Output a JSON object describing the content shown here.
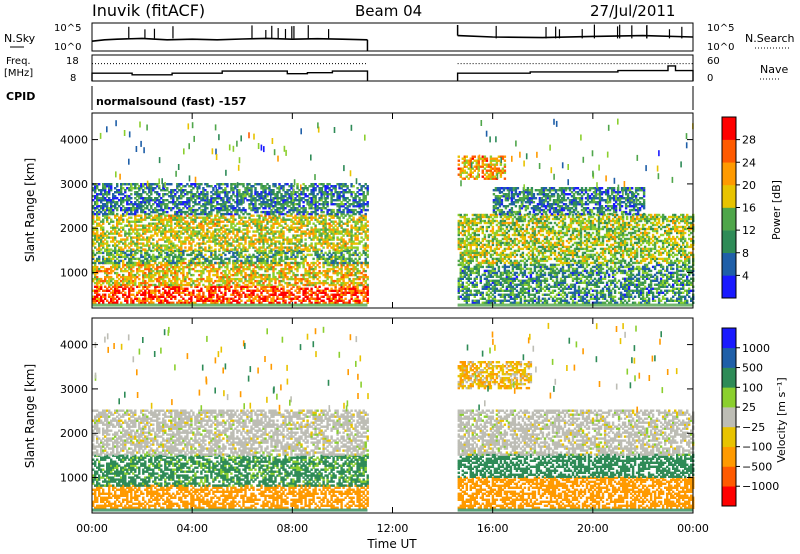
{
  "header": {
    "station": "Inuvik (fitACF)",
    "beam": "Beam 04",
    "date": "27/Jul/2011"
  },
  "colors": {
    "axis": "#000000",
    "ground_scatter": "#bdbdb5",
    "power_scale": [
      "#1a1aff",
      "#1f5fa8",
      "#2e8b57",
      "#4fa64a",
      "#8bcf2e",
      "#e8c300",
      "#ff9a00",
      "#ff5a00",
      "#ff0000"
    ],
    "velocity_scale": [
      "#ff0000",
      "#ff5a00",
      "#ff9a00",
      "#e8c300",
      "#bdbdb5",
      "#8bcf2e",
      "#2e8b57",
      "#1f5fa8",
      "#1a1aff"
    ]
  },
  "chart_data": [
    {
      "type": "line",
      "panel": "noise",
      "left_label": "N.Sky",
      "right_label": "N.Search",
      "left_ticks": [
        "10^5",
        "10^0"
      ],
      "right_ticks": [
        "10^5",
        "10^0"
      ],
      "x_range_hours": [
        0,
        24
      ],
      "data_gap_hours": [
        11.0,
        14.6
      ],
      "series": [
        {
          "name": "N.Sky",
          "points": [
            [
              0,
              0.35
            ],
            [
              0.5,
              0.4
            ],
            [
              1,
              0.42
            ],
            [
              2,
              0.45
            ],
            [
              3,
              0.4
            ],
            [
              4,
              0.42
            ],
            [
              5,
              0.4
            ],
            [
              6,
              0.43
            ],
            [
              7,
              0.45
            ],
            [
              8,
              0.42
            ],
            [
              9,
              0.44
            ],
            [
              10,
              0.42
            ],
            [
              11,
              0.4
            ],
            [
              14.6,
              0.55
            ],
            [
              16,
              0.5
            ],
            [
              18,
              0.48
            ],
            [
              20,
              0.52
            ],
            [
              22,
              0.55
            ],
            [
              24,
              0.5
            ]
          ]
        }
      ]
    },
    {
      "type": "line",
      "panel": "frequency",
      "left_label": "Freq.",
      "left_label2": "[MHz]",
      "right_label": "Nave",
      "left_ticks": [
        "18",
        "8"
      ],
      "right_ticks": [
        "60",
        "0"
      ],
      "x_range_hours": [
        0,
        24
      ],
      "series": [
        {
          "name": "Freq.",
          "points": [
            [
              0,
              11.0
            ],
            [
              1.6,
              11.0
            ],
            [
              1.6,
              10.4
            ],
            [
              3.2,
              10.4
            ],
            [
              3.2,
              11.0
            ],
            [
              5.2,
              11.0
            ],
            [
              5.2,
              11.8
            ],
            [
              7.8,
              11.8
            ],
            [
              7.8,
              10.8
            ],
            [
              8.6,
              10.8
            ],
            [
              8.6,
              11.2
            ],
            [
              9.6,
              11.2
            ],
            [
              9.6,
              11.8
            ],
            [
              11.0,
              11.8
            ],
            [
              14.6,
              11.0
            ],
            [
              17.5,
              11.0
            ],
            [
              17.5,
              11.5
            ],
            [
              21.0,
              11.5
            ],
            [
              21.0,
              12.0
            ],
            [
              23.0,
              12.0
            ],
            [
              23.0,
              13.8
            ],
            [
              23.3,
              13.8
            ],
            [
              23.3,
              12.0
            ],
            [
              24,
              12.0
            ]
          ]
        },
        {
          "name": "Nave",
          "points": [
            [
              0,
              40
            ],
            [
              24,
              40
            ]
          ]
        }
      ]
    },
    {
      "type": "heatmap",
      "panel": "power",
      "cpid_label": "CPID",
      "program": "normalsound (fast) -157",
      "ylabel": "Slant Range [km]",
      "yticks": [
        1000,
        2000,
        3000,
        4000
      ],
      "ylim": [
        200,
        4600
      ],
      "colorbar_label": "Power [dB]",
      "colorbar_ticks": [
        4,
        8,
        12,
        16,
        20,
        24,
        28
      ],
      "colorbar_range": [
        0,
        32
      ],
      "regions": [
        {
          "t0": 0.0,
          "t1": 11.0,
          "r0": 300,
          "r1": 700,
          "level": 28
        },
        {
          "t0": 0.0,
          "t1": 11.0,
          "r0": 700,
          "r1": 1200,
          "level": 20
        },
        {
          "t0": 0.0,
          "t1": 11.0,
          "r0": 1200,
          "r1": 1500,
          "level": 12
        },
        {
          "t0": 0.0,
          "t1": 11.0,
          "r0": 1500,
          "r1": 2300,
          "level": 18
        },
        {
          "t0": 0.0,
          "t1": 11.0,
          "r0": 2300,
          "r1": 3000,
          "level": 8
        },
        {
          "t0": 14.6,
          "t1": 24.0,
          "r0": 300,
          "r1": 1200,
          "level": 10
        },
        {
          "t0": 14.6,
          "t1": 24.0,
          "r0": 1200,
          "r1": 2300,
          "level": 16
        },
        {
          "t0": 16.0,
          "t1": 22.0,
          "r0": 2300,
          "r1": 2900,
          "level": 8
        },
        {
          "t0": 14.6,
          "t1": 16.5,
          "r0": 3100,
          "r1": 3600,
          "level": 22
        }
      ]
    },
    {
      "type": "heatmap",
      "panel": "velocity",
      "ylabel": "Slant Range [km]",
      "yticks": [
        1000,
        2000,
        3000,
        4000
      ],
      "ylim": [
        200,
        4600
      ],
      "xlabel": "Time UT",
      "xticks": [
        "00:00",
        "04:00",
        "08:00",
        "12:00",
        "16:00",
        "20:00",
        "00:00"
      ],
      "colorbar_label": "Velocity [m s⁻¹]",
      "colorbar_ticks": [
        "1000",
        "500",
        "100",
        "25",
        "−25",
        "−100",
        "−500",
        "−1000"
      ],
      "regions": [
        {
          "t0": 0.0,
          "t1": 11.0,
          "r0": 300,
          "r1": 800,
          "level": -200
        },
        {
          "t0": 0.0,
          "t1": 11.0,
          "r0": 800,
          "r1": 1500,
          "level": 150
        },
        {
          "t0": 0.0,
          "t1": 11.0,
          "r0": 1500,
          "r1": 2500,
          "level": 0
        },
        {
          "t0": 14.6,
          "t1": 24.0,
          "r0": 300,
          "r1": 1000,
          "level": -200
        },
        {
          "t0": 14.6,
          "t1": 24.0,
          "r0": 1000,
          "r1": 1500,
          "level": 200
        },
        {
          "t0": 14.6,
          "t1": 24.0,
          "r0": 1500,
          "r1": 2500,
          "level": 0
        },
        {
          "t0": 14.6,
          "t1": 17.5,
          "r0": 3000,
          "r1": 3600,
          "level": -80
        }
      ]
    }
  ]
}
